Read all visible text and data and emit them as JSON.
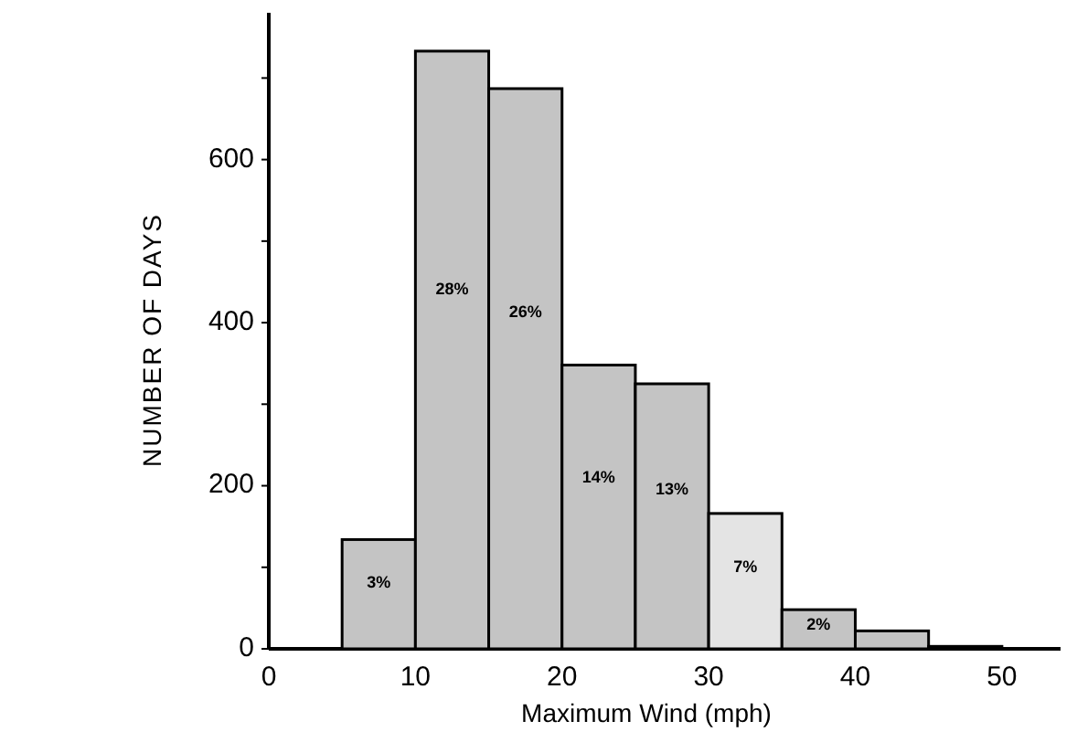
{
  "chart_data": {
    "type": "histogram",
    "xlabel": "Maximum Wind (mph)",
    "ylabel": "NUMBER OF DAYS",
    "bins": [
      5,
      10,
      15,
      20,
      25,
      30,
      35,
      40,
      45,
      50
    ],
    "values": [
      134,
      733,
      687,
      348,
      325,
      166,
      48,
      22,
      3
    ],
    "colors": [
      "#c4c4c4",
      "#c4c4c4",
      "#c4c4c4",
      "#c4c4c4",
      "#c4c4c4",
      "#e4e4e4",
      "#c4c4c4",
      "#c4c4c4",
      "#c4c4c4"
    ],
    "annotations": [
      "3%",
      "28%",
      "26%",
      "14%",
      "13%",
      "7%",
      "2%"
    ],
    "xlim": [
      0,
      54
    ],
    "xticks": [
      0,
      10,
      20,
      30,
      40,
      50
    ],
    "ylim": [
      0,
      780
    ],
    "yticks": [
      0,
      {
        "value": 100,
        "label": null
      },
      200,
      {
        "value": 300,
        "label": null
      },
      400,
      {
        "value": 500,
        "label": null
      },
      600,
      {
        "value": 700,
        "label": null
      }
    ],
    "grid": false
  }
}
